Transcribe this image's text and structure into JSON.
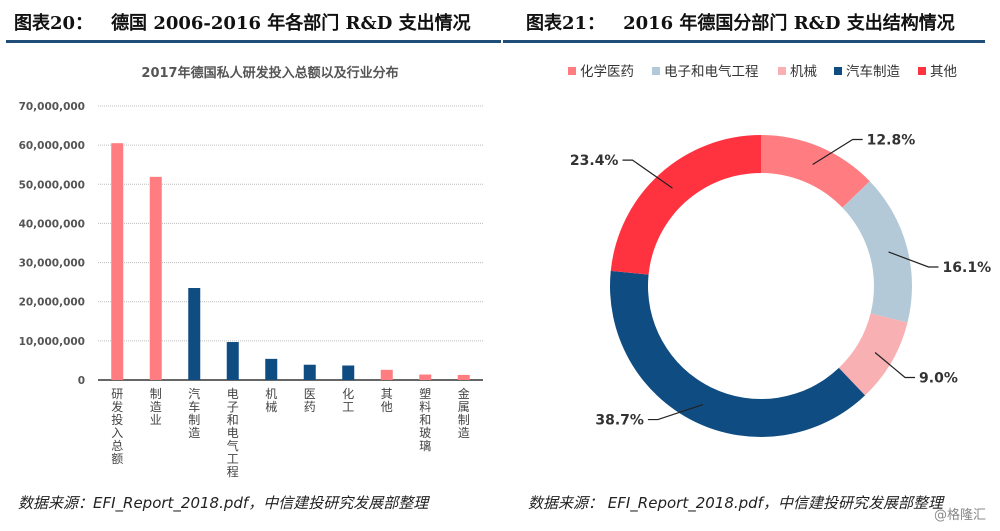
{
  "left_panel": {
    "figure_no": "图表20：",
    "title": "德国 2006-2016 年各部门 R&D 支出情况",
    "source": "数据来源：EFI_Report_2018.pdf，中信建投研究发展部整理"
  },
  "right_panel": {
    "figure_no": "图表21：",
    "title": "2016 年德国分部门 R&D 支出结构情况",
    "source": "数据来源：  EFI_Report_2018.pdf，中信建投研究发展部整理"
  },
  "watermark": "@格隆汇",
  "colors": {
    "pink": "#ff7c80",
    "navy": "#0f4c81",
    "lightblue": "#b4c9d8",
    "lightpink": "#f9b0b3",
    "red": "#ff3340",
    "rule": "#1f4e79"
  },
  "chart_data": [
    {
      "type": "bar",
      "title": "2017年德国私人研发投入总额以及行业分布",
      "xlabel": "",
      "ylabel": "",
      "ylim": [
        0,
        70000000
      ],
      "yticks": [
        0,
        10000000,
        20000000,
        30000000,
        40000000,
        50000000,
        60000000,
        70000000
      ],
      "ytick_labels": [
        "0",
        "10,000,000",
        "20,000,000",
        "30,000,000",
        "40,000,000",
        "50,000,000",
        "60,000,000",
        "70,000,000"
      ],
      "grid": true,
      "categories": [
        "研发投入总额",
        "制造业",
        "汽车制造",
        "电子和电气工程",
        "机械",
        "医药",
        "化工",
        "其他",
        "塑料和玻璃",
        "金属制造"
      ],
      "values": [
        60500000,
        51900000,
        23500000,
        9700000,
        5400000,
        3900000,
        3700000,
        2600000,
        1400000,
        1300000
      ],
      "bar_colors": [
        "#ff7c80",
        "#ff7c80",
        "#0f4c81",
        "#0f4c81",
        "#0f4c81",
        "#0f4c81",
        "#0f4c81",
        "#ff7c80",
        "#ff7c80",
        "#ff7c80"
      ]
    },
    {
      "type": "pie",
      "donut": true,
      "title": "",
      "legend_position": "top",
      "categories": [
        "化学医药",
        "电子和电气工程",
        "机械",
        "汽车制造",
        "其他"
      ],
      "values": [
        12.8,
        16.1,
        9.0,
        38.7,
        23.4
      ],
      "labels": [
        "12.8%",
        "16.1%",
        "9.0%",
        "38.7%",
        "23.4%"
      ],
      "colors": [
        "#ff7c80",
        "#b4c9d8",
        "#f9b0b3",
        "#0f4c81",
        "#ff3340"
      ]
    }
  ]
}
